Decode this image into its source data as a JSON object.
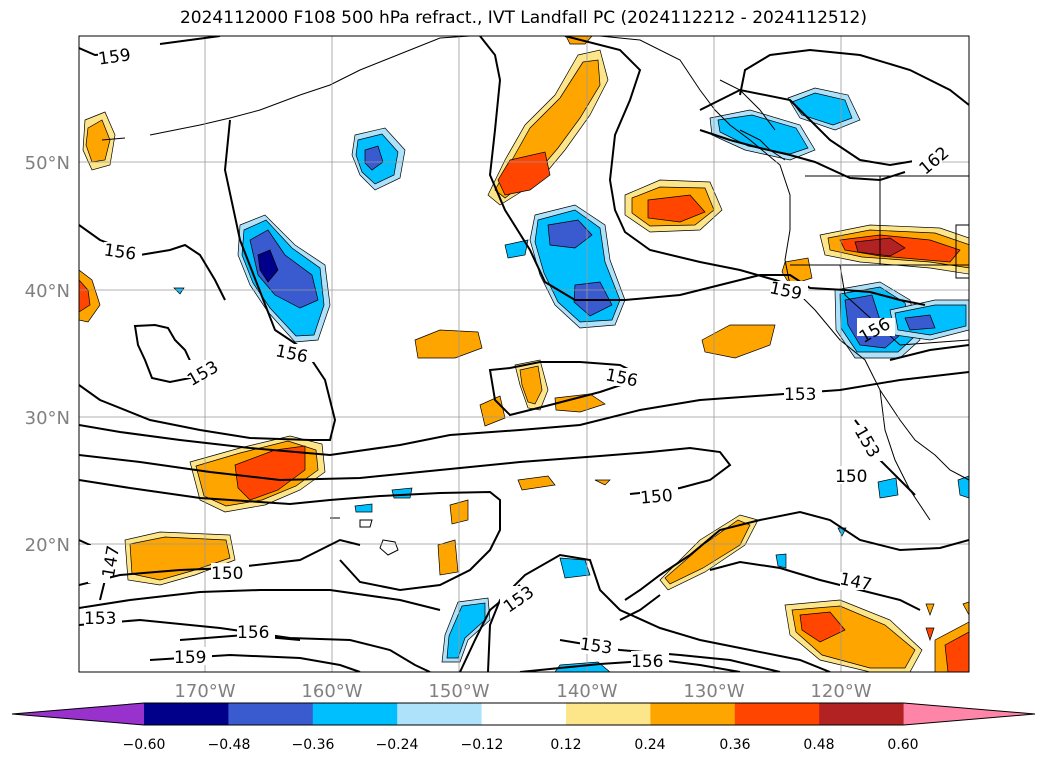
{
  "title": "2024112000 F108 500 hPa refract., IVT Landfall PC (2024112212 - 2024112512)",
  "map": {
    "lat_labels": [
      "50°N",
      "40°N",
      "30°N",
      "20°N"
    ],
    "lon_labels": [
      "170°W",
      "160°W",
      "150°W",
      "140°W",
      "130°W",
      "120°W"
    ],
    "contour_labels": [
      "159",
      "156",
      "153",
      "156",
      "156",
      "159",
      "153",
      "150",
      "153",
      "147",
      "150",
      "153",
      "156",
      "159",
      "153",
      "156",
      "162",
      "156",
      "153",
      "150",
      "147"
    ]
  },
  "colorbar": {
    "ticks": [
      "−0.60",
      "−0.48",
      "−0.36",
      "−0.24",
      "−0.12",
      "0.12",
      "0.24",
      "0.36",
      "0.48",
      "0.60"
    ],
    "colors": [
      "#9932cc",
      "#00008b",
      "#3a5bd0",
      "#00bfff",
      "#aee2fa",
      "#ffffff",
      "#fde68a",
      "#ffa500",
      "#ff4500",
      "#b22222",
      "#ff85a8"
    ]
  }
}
